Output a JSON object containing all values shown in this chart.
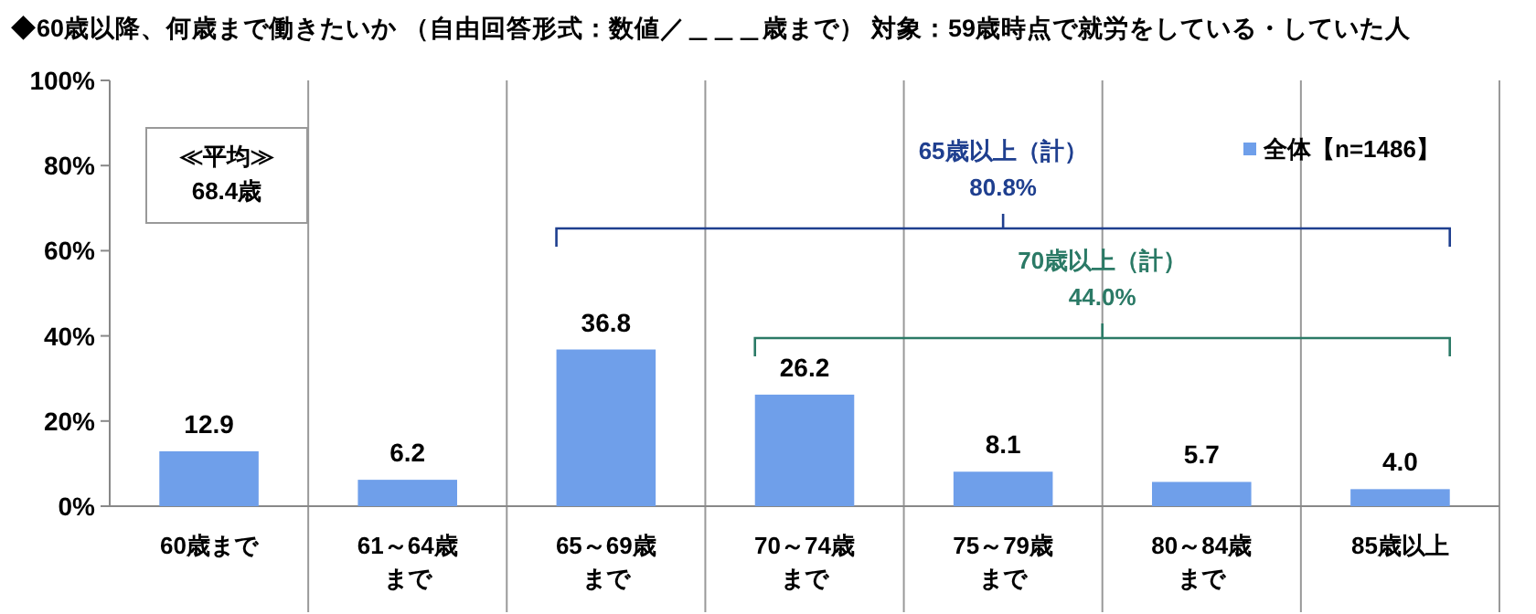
{
  "chart_data": {
    "type": "bar",
    "title": "◆60歳以降、何歳まで働きたいか （自由回答形式：数値／＿＿＿歳まで） 対象：59歳時点で就労をしている・していた人",
    "categories": [
      "60歳まで",
      "61～64歳まで",
      "65～69歳まで",
      "70～74歳まで",
      "75～79歳まで",
      "80～84歳まで",
      "85歳以上"
    ],
    "series": [
      {
        "name": "全体【n=1486】",
        "color": "#6f9fea",
        "values": [
          12.9,
          6.2,
          36.8,
          26.2,
          8.1,
          5.7,
          4.0
        ],
        "value_labels": [
          "12.9",
          "6.2",
          "36.8",
          "26.2",
          "8.1",
          "5.7",
          "4.0"
        ]
      }
    ],
    "ylim": [
      0,
      100
    ],
    "yticks": [
      {
        "value": 0,
        "label": "0%"
      },
      {
        "value": 20,
        "label": "20%"
      },
      {
        "value": 40,
        "label": "40%"
      },
      {
        "value": 60,
        "label": "60%"
      },
      {
        "value": 80,
        "label": "80%"
      },
      {
        "value": 100,
        "label": "100%"
      }
    ],
    "grid": "x",
    "legend": "top right",
    "annotations": [
      "≪平均≫\n68.4歳",
      "65歳以上（計）\n80.8%",
      "70歳以上（計）\n44.0%"
    ]
  }
}
